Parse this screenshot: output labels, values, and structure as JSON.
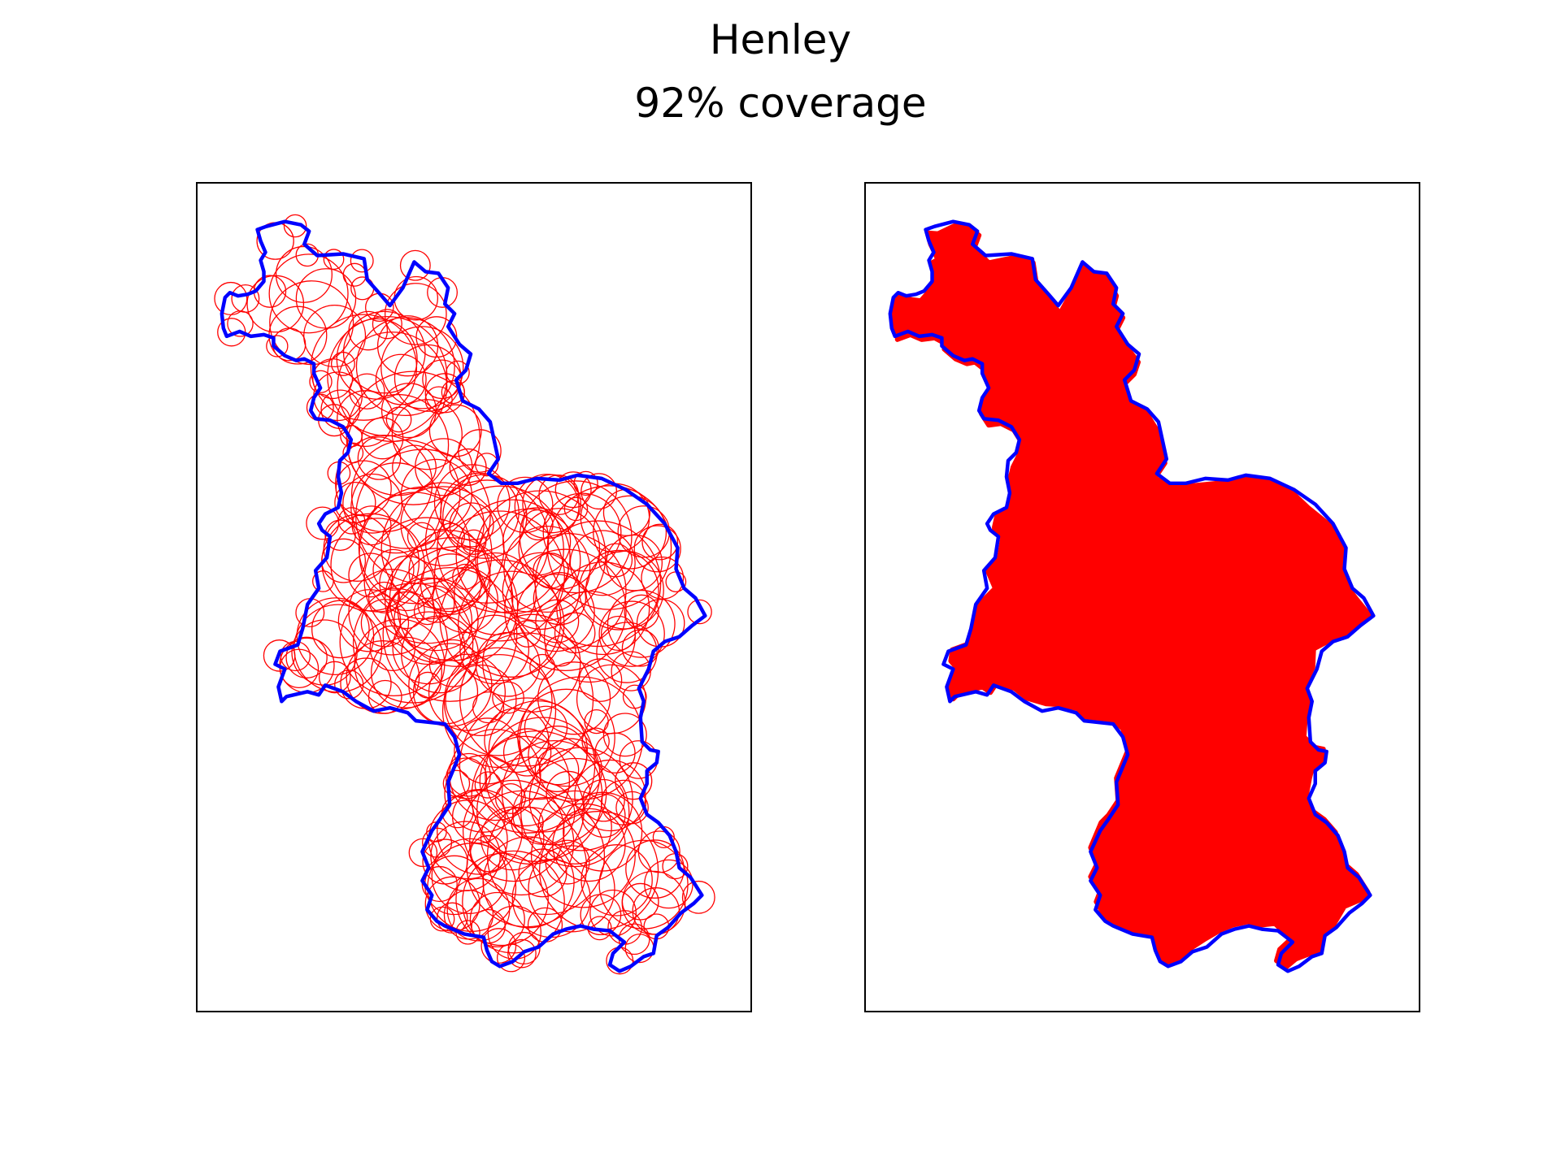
{
  "figure": {
    "title": "Henley",
    "subtitle": "92% coverage"
  },
  "colors": {
    "outline": "#0000ff",
    "coverage": "#ff0000",
    "frame": "#000000"
  },
  "chart_data": [
    {
      "type": "map",
      "title": "",
      "panel": "left",
      "region": "Henley",
      "coverage_percent": 92,
      "outline_color": "#0000ff",
      "circle_color": "#ff0000",
      "circle_style": "outline",
      "axes_ticks": false
    },
    {
      "type": "map",
      "title": "",
      "panel": "right",
      "region": "Henley",
      "coverage_percent": 92,
      "outline_color": "#0000ff",
      "fill_color": "#ff0000",
      "fill_style": "solid",
      "axes_ticks": false
    }
  ]
}
